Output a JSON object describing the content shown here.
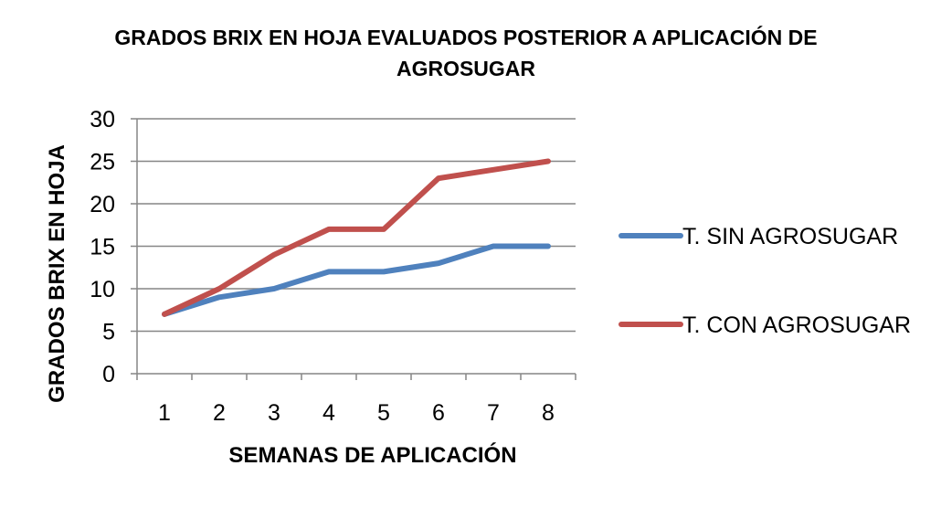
{
  "chart_data": {
    "type": "line",
    "title": "GRADOS BRIX EN HOJA EVALUADOS POSTERIOR A APLICACIÓN DE AGROSUGAR",
    "xlabel": "SEMANAS DE APLICACIÓN",
    "ylabel": "GRADOS  BRIX EN HOJA",
    "categories": [
      "1",
      "2",
      "3",
      "4",
      "5",
      "6",
      "7",
      "8"
    ],
    "yticks": [
      "0",
      "5",
      "10",
      "15",
      "20",
      "25",
      "30"
    ],
    "ylim": [
      0,
      30
    ],
    "grid": true,
    "legend_position": "right",
    "series": [
      {
        "name": "T. SIN AGROSUGAR",
        "color": "#4F81BD",
        "values": [
          7,
          9,
          10,
          12,
          12,
          13,
          15,
          15
        ]
      },
      {
        "name": "T. CON AGROSUGAR",
        "color": "#C0504D",
        "values": [
          7,
          10,
          14,
          17,
          17,
          23,
          24,
          25
        ]
      }
    ]
  }
}
